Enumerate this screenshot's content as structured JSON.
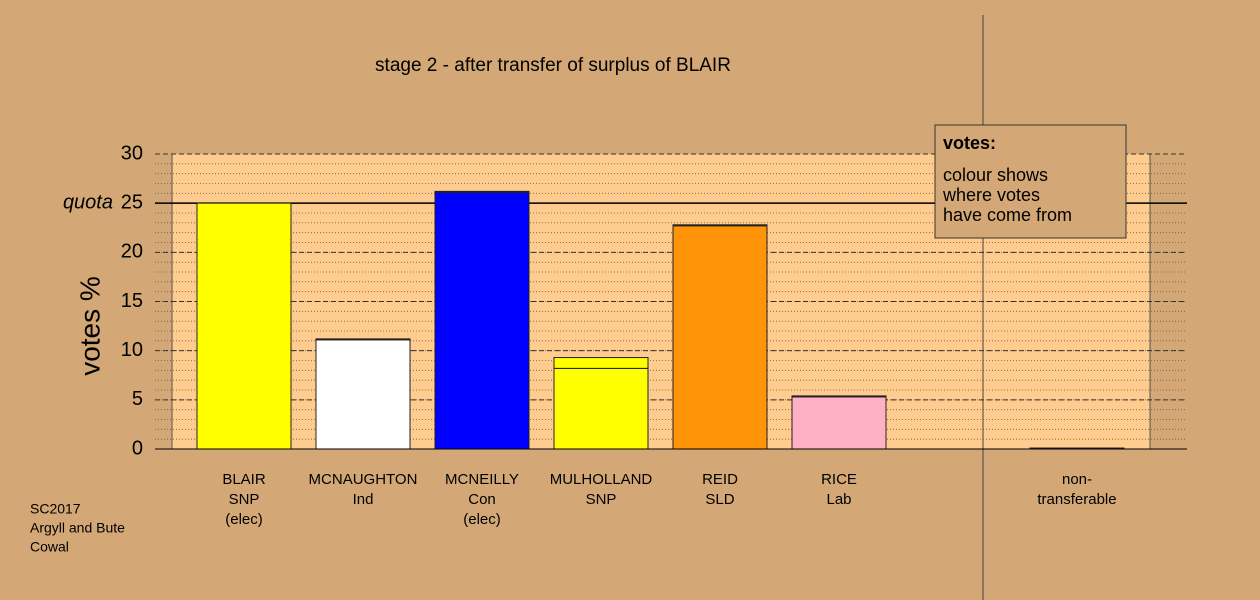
{
  "chart_data": {
    "type": "stacked_bar",
    "title": "stage 2 - after transfer of surplus of BLAIR",
    "y_label": "votes %",
    "categories": [
      [
        "BLAIR",
        "SNP",
        "(elec)"
      ],
      [
        "MCNAUGHTON",
        "Ind"
      ],
      [
        "MCNEILLY",
        "Con",
        "(elec)"
      ],
      [
        "MULHOLLAND",
        "SNP"
      ],
      [
        "REID",
        "SLD"
      ],
      [
        "RICE",
        "Lab"
      ],
      null,
      [
        "non-",
        "transferable"
      ]
    ],
    "series": [
      {
        "colors": [
          "#ffff00",
          "#ffffff",
          "#0000ff",
          "#ffff00",
          "#ff9408",
          "#ffb0c4",
          null,
          "#d4a876"
        ],
        "values": [
          25,
          11.1,
          26.1,
          8.2,
          22.7,
          5.3,
          null,
          0
        ]
      },
      {
        "color": "#ffff00",
        "values": [
          0,
          0.1,
          0.1,
          1.1,
          0.1,
          0.1,
          null,
          0.1
        ]
      }
    ],
    "ylim": [
      0,
      30
    ],
    "yticks": [
      0,
      5,
      10,
      15,
      20,
      25,
      30
    ],
    "minor_step": 1,
    "quota": {
      "value": 25,
      "label": "quota"
    },
    "legend": {
      "title": "votes:",
      "lines": [
        "colour shows",
        "where votes",
        "have come from"
      ]
    },
    "footnote": [
      "SC2017",
      "Argyll and Bute",
      "Cowal"
    ]
  }
}
